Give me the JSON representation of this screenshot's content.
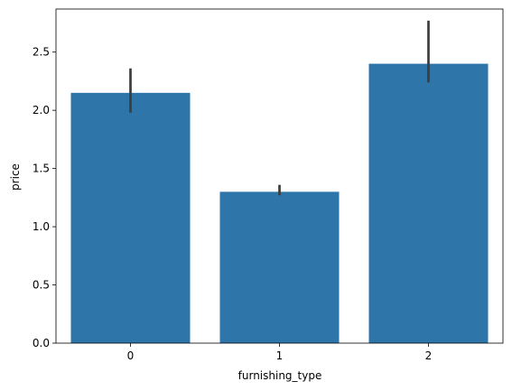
{
  "chart_data": {
    "type": "bar",
    "categories": [
      "0",
      "1",
      "2"
    ],
    "values": [
      2.15,
      1.3,
      2.4
    ],
    "error_bars": [
      {
        "low": 1.98,
        "high": 2.36
      },
      {
        "low": 1.27,
        "high": 1.36
      },
      {
        "low": 2.24,
        "high": 2.77
      }
    ],
    "title": "",
    "xlabel": "furnishing_type",
    "ylabel": "price",
    "ylim": [
      0,
      2.87
    ],
    "yticks": [
      "0.0",
      "0.5",
      "1.0",
      "1.5",
      "2.0",
      "2.5"
    ],
    "grid": false,
    "legend": "none",
    "colors": {
      "bar": "#2e75aa",
      "error_bar": "#3d3d3d",
      "axis": "#000000"
    }
  }
}
